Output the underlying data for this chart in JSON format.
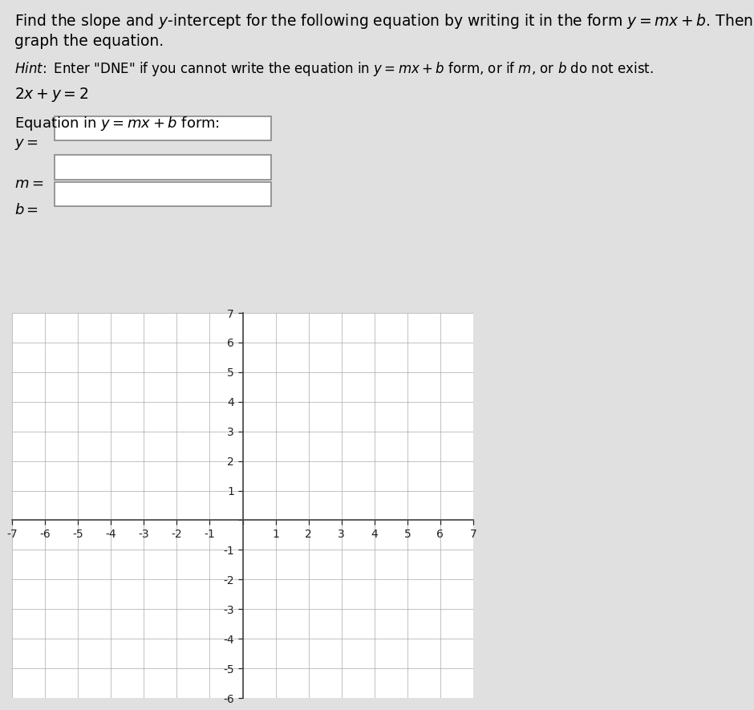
{
  "bg_color": "#e0e0e0",
  "text_color": "#000000",
  "box_color": "#ffffff",
  "box_border": "#aaaaaa",
  "grid_color": "#aaaaaa",
  "axis_color": "#444444",
  "tick_color": "#222222",
  "graph_bg": "#ffffff",
  "x_min": -7,
  "x_max": 7,
  "y_min": -6,
  "y_max": 7,
  "font_size_title": 13.5,
  "font_size_hint": 12,
  "font_size_equation": 13.5,
  "font_size_label": 13,
  "font_size_tick": 10,
  "line1": "Find the slope and $y$-intercept for the following equation by writing it in the form $y = mx + b$. Then,",
  "line2": "graph the equation.",
  "hint": "$\\mathit{Hint\\!:}$ Enter \"DNE\" if you cannot write the equation in $y = mx + b$ form, or if $m$, or $b$ do not exist.",
  "equation": "$2x + y = 2$",
  "eq_label": "Equation in $y = mx + b$ form:",
  "label_y": "$y =$",
  "label_m": "$m =$",
  "label_b": "$b =$"
}
